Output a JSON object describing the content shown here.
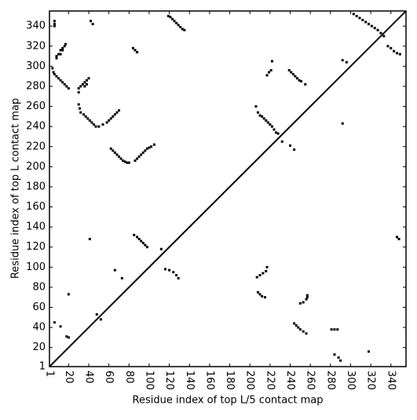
{
  "chart_data": {
    "type": "scatter",
    "xlabel": "Residue index of top L/5 contact map",
    "ylabel": "Residue index of top L contact map",
    "color": "#000000",
    "xlim": [
      1,
      355
    ],
    "ylim": [
      1,
      355
    ],
    "xticks": [
      1,
      20,
      40,
      60,
      80,
      100,
      120,
      140,
      160,
      180,
      200,
      220,
      240,
      260,
      280,
      300,
      320,
      340
    ],
    "yticks": [
      1,
      20,
      40,
      60,
      80,
      100,
      120,
      140,
      160,
      180,
      200,
      220,
      240,
      260,
      280,
      300,
      320,
      340
    ],
    "x": [
      6,
      6,
      6,
      8,
      8,
      10,
      12,
      12,
      14,
      14,
      16,
      17,
      4,
      5,
      6,
      8,
      10,
      12,
      14,
      16,
      18,
      20,
      30,
      30,
      32,
      34,
      36,
      38,
      40,
      36,
      38,
      30,
      31,
      32,
      35,
      37,
      39,
      41,
      43,
      45,
      47,
      50,
      54,
      58,
      60,
      62,
      64,
      66,
      68,
      70,
      62,
      64,
      66,
      68,
      70,
      72,
      74,
      76,
      78,
      80,
      86,
      88,
      90,
      92,
      94,
      96,
      98,
      100,
      102,
      105,
      84,
      86,
      88,
      119,
      121,
      123,
      125,
      127,
      129,
      131,
      133,
      135,
      42,
      44,
      85,
      88,
      90,
      92,
      94,
      96,
      98,
      116,
      120,
      124,
      127,
      129,
      20,
      41,
      48,
      52,
      66,
      73,
      112,
      6,
      12,
      18,
      20,
      217,
      219,
      221,
      222,
      239,
      241,
      243,
      245,
      247,
      249,
      251,
      255,
      206,
      208,
      210,
      212,
      214,
      216,
      218,
      220,
      222,
      224,
      226,
      228,
      232,
      240,
      244,
      292,
      296,
      292,
      303,
      306,
      309,
      312,
      315,
      318,
      321,
      324,
      327,
      330,
      333,
      337,
      340,
      343,
      346,
      349,
      207,
      210,
      213,
      216,
      217,
      208,
      210,
      212,
      215,
      244,
      246,
      248,
      250,
      253,
      256,
      250,
      253,
      256,
      257,
      257,
      281,
      284,
      287,
      284,
      288,
      290,
      318,
      346,
      348
    ],
    "y": [
      345,
      342,
      340,
      308,
      310,
      312,
      312,
      316,
      316,
      318,
      320,
      322,
      298,
      294,
      292,
      290,
      288,
      286,
      284,
      282,
      280,
      278,
      274,
      278,
      280,
      282,
      284,
      286,
      288,
      280,
      282,
      262,
      258,
      254,
      252,
      250,
      248,
      246,
      244,
      242,
      240,
      240,
      242,
      244,
      246,
      248,
      250,
      252,
      254,
      256,
      218,
      216,
      214,
      212,
      210,
      208,
      206,
      205,
      204,
      204,
      206,
      208,
      210,
      212,
      214,
      216,
      218,
      219,
      220,
      222,
      318,
      316,
      314,
      350,
      349,
      347,
      345,
      343,
      341,
      339,
      337,
      336,
      345,
      342,
      132,
      130,
      128,
      126,
      124,
      122,
      120,
      98,
      97,
      95,
      92,
      89,
      73,
      128,
      53,
      48,
      97,
      89,
      118,
      45,
      41,
      31,
      30,
      291,
      294,
      296,
      305,
      296,
      294,
      292,
      290,
      288,
      286,
      285,
      282,
      260,
      254,
      251,
      250,
      248,
      246,
      244,
      242,
      240,
      237,
      234,
      233,
      225,
      221,
      217,
      306,
      304,
      243,
      352,
      350,
      348,
      346,
      344,
      342,
      340,
      338,
      336,
      333,
      330,
      320,
      318,
      315,
      313,
      312,
      90,
      92,
      94,
      96,
      100,
      75,
      73,
      71,
      70,
      44,
      42,
      40,
      38,
      36,
      34,
      64,
      65,
      68,
      70,
      72,
      38,
      38,
      38,
      13,
      10,
      7,
      16,
      130,
      128
    ]
  }
}
